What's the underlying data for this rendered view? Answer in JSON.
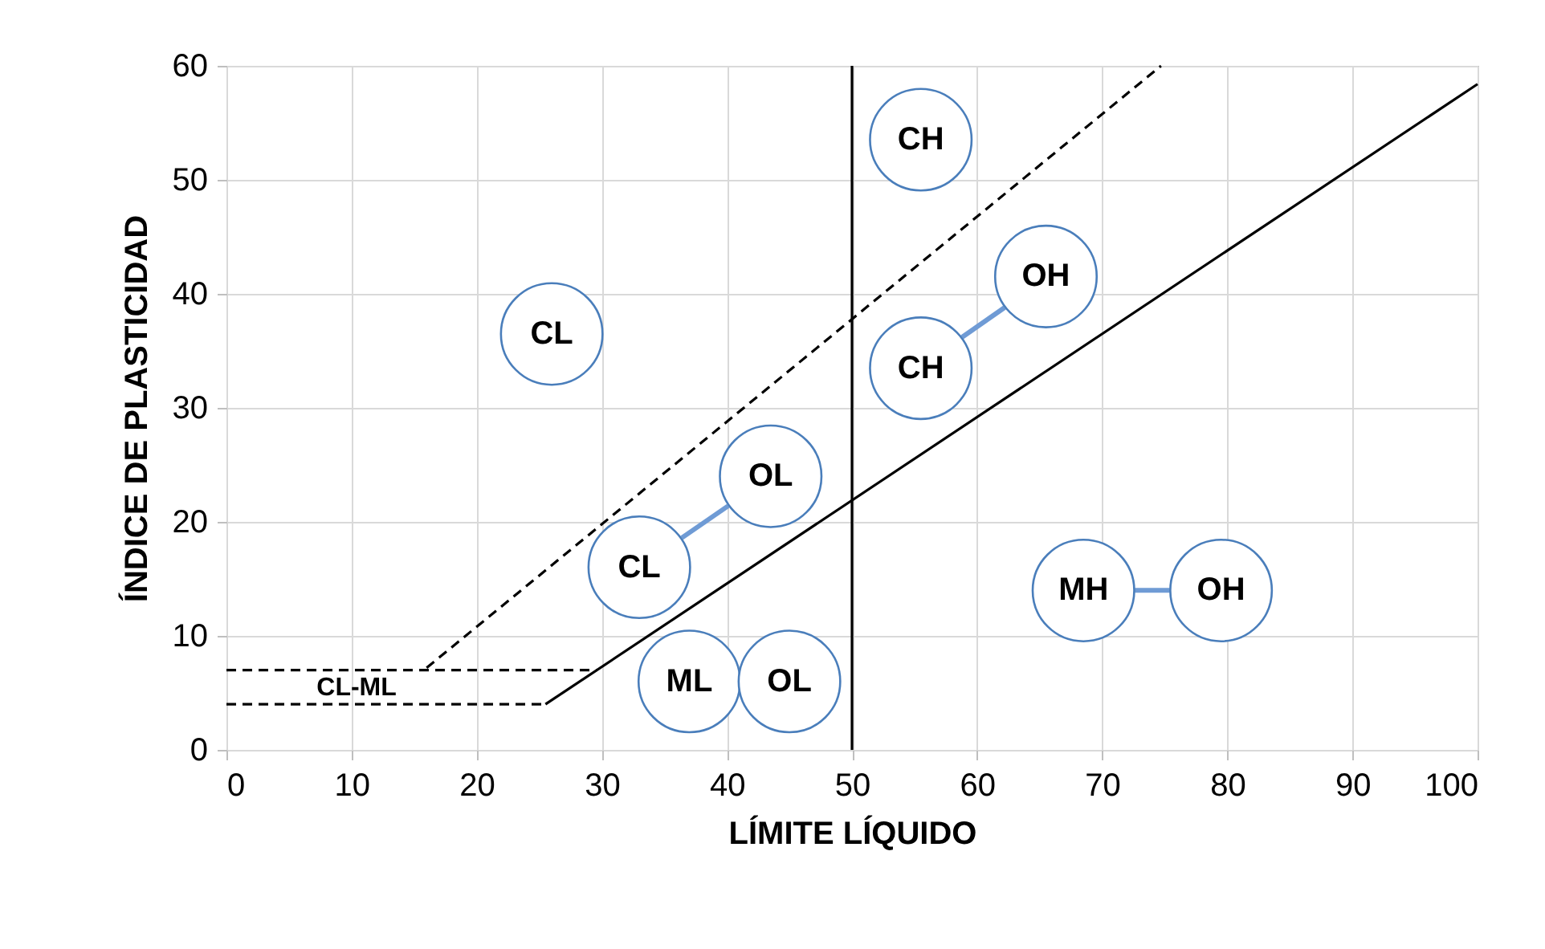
{
  "chart_data": {
    "type": "line",
    "xlabel": "LÍMITE LÍQUIDO",
    "ylabel": "ÍNDICE DE PLASTICIDAD",
    "xlim": [
      0,
      100
    ],
    "xticks": [
      0,
      10,
      20,
      30,
      40,
      50,
      60,
      70,
      80,
      90,
      100
    ],
    "ylim": [
      0,
      60
    ],
    "yticks": [
      0,
      10,
      20,
      30,
      40,
      50,
      60
    ],
    "grid": true,
    "series": [
      {
        "color": "#000000",
        "line_style": "dashed",
        "x": [
          0,
          29.6
        ],
        "values": [
          7,
          7
        ]
      },
      {
        "color": "#000000",
        "line_style": "dashed",
        "x": [
          0,
          25.5
        ],
        "values": [
          4,
          4
        ]
      },
      {
        "color": "#000000",
        "line_style": "dashed",
        "x": [
          16,
          74.7
        ],
        "values": [
          7.2,
          60
        ]
      },
      {
        "color": "#000000",
        "line_style": "solid",
        "x": [
          25.5,
          100
        ],
        "values": [
          4,
          58.4
        ]
      },
      {
        "color": "#6f9bd5",
        "line_style": "solid",
        "x": [
          36.4,
          40.1
        ],
        "values": [
          18.6,
          21.4
        ]
      },
      {
        "color": "#6f9bd5",
        "line_style": "solid",
        "x": [
          58.8,
          62.2
        ],
        "values": [
          36.2,
          38.8
        ]
      },
      {
        "color": "#6f9bd5",
        "line_style": "solid",
        "x": [
          72.6,
          75.4
        ],
        "values": [
          14,
          14
        ]
      }
    ],
    "ref_lines": [
      {
        "axis": "x",
        "value": 50,
        "color": "#000000"
      }
    ],
    "annotations": [
      "CH",
      "OH",
      "CH",
      "CL",
      "OL",
      "CL",
      "ML",
      "OL",
      "MH",
      "OH",
      "CL-ML"
    ]
  }
}
